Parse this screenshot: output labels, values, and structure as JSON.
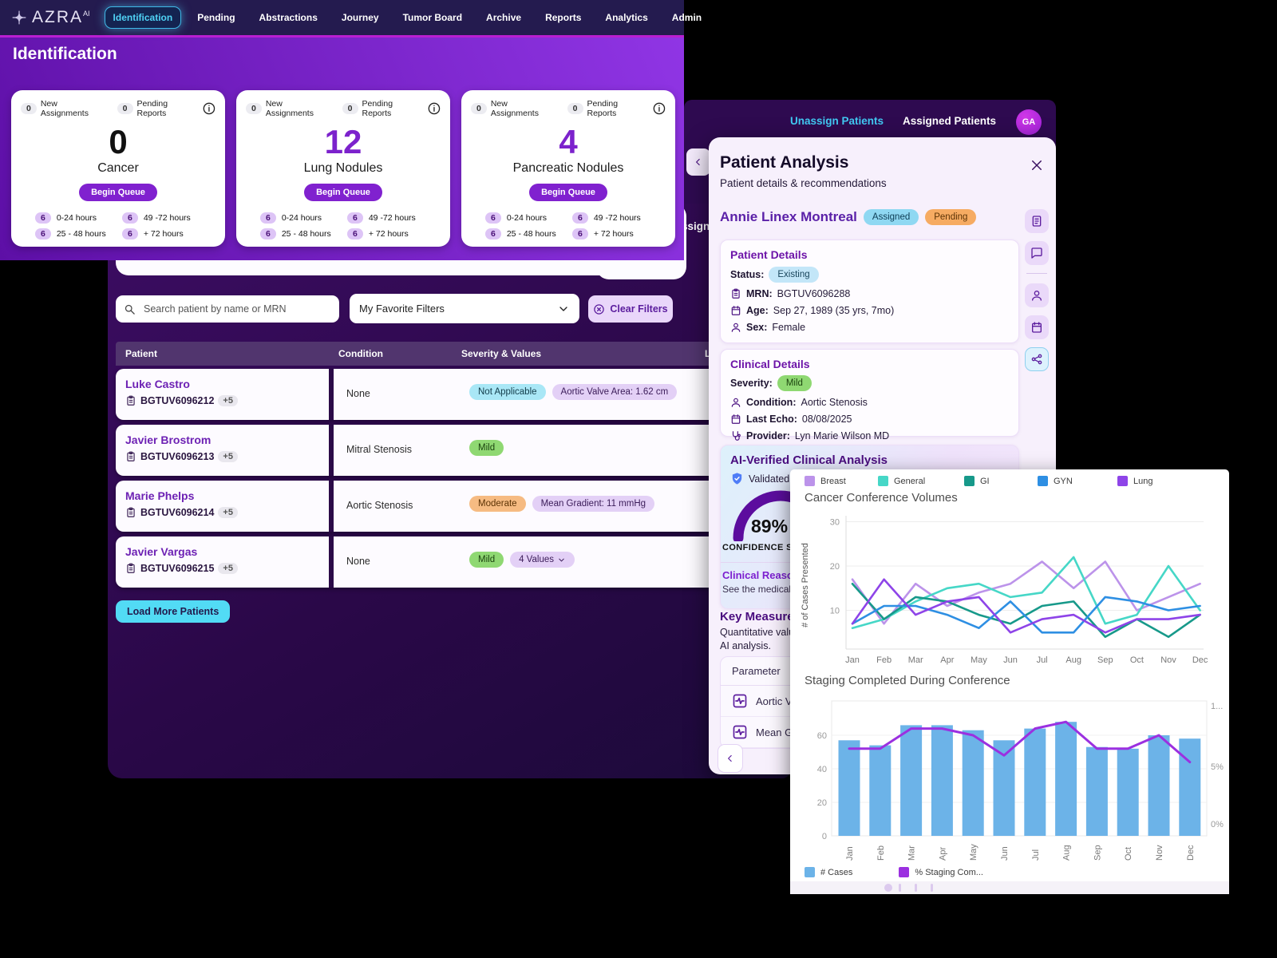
{
  "colors": {
    "accent_purple": "#8021cf",
    "accent_cyan": "#52dbf5",
    "tab_cyan": "#41c9f2",
    "magenta_line": "#b91fd1",
    "gauge_purple": "#5c0d9e"
  },
  "nav": {
    "brand": "AZRA",
    "brand_sup": "AI",
    "items": [
      {
        "label": "Identification",
        "active": true
      },
      {
        "label": "Pending"
      },
      {
        "label": "Abstractions"
      },
      {
        "label": "Journey"
      },
      {
        "label": "Tumor Board"
      },
      {
        "label": "Archive"
      },
      {
        "label": "Reports"
      },
      {
        "label": "Analytics"
      },
      {
        "label": "Admin"
      }
    ]
  },
  "identification": {
    "title": "Identification",
    "cards": [
      {
        "new_count": "0",
        "new_label": "New Assignments",
        "pending_count": "0",
        "pending_label": "Pending Reports",
        "count": "0",
        "number_color": "#111111",
        "name": "Cancer",
        "button": "Begin Queue",
        "times": [
          {
            "count": "6",
            "label": "0-24 hours"
          },
          {
            "count": "6",
            "label": "49 -72 hours"
          },
          {
            "count": "6",
            "label": "25 - 48 hours"
          },
          {
            "count": "6",
            "label": "+ 72 hours"
          }
        ]
      },
      {
        "new_count": "0",
        "new_label": "New Assignments",
        "pending_count": "0",
        "pending_label": "Pending Reports",
        "count": "12",
        "number_color": "#7c22cc",
        "name": "Lung Nodules",
        "button": "Begin Queue",
        "times": [
          {
            "count": "6",
            "label": "0-24 hours"
          },
          {
            "count": "6",
            "label": "49 -72 hours"
          },
          {
            "count": "6",
            "label": "25 - 48 hours"
          },
          {
            "count": "6",
            "label": "+ 72 hours"
          }
        ]
      },
      {
        "new_count": "0",
        "new_label": "New Assignments",
        "pending_count": "0",
        "pending_label": "Pending Reports",
        "count": "4",
        "number_color": "#7c22cc",
        "name": "Pancreatic Nodules",
        "button": "Begin Queue",
        "times": [
          {
            "count": "6",
            "label": "0-24 hours"
          },
          {
            "count": "6",
            "label": "49 -72 hours"
          },
          {
            "count": "6",
            "label": "25 - 48 hours"
          },
          {
            "count": "6",
            "label": "+ 72 hours"
          }
        ]
      }
    ]
  },
  "filters": {
    "search_placeholder": "Search patient by name or MRN",
    "favorite_filters": "My Favorite Filters",
    "clear_filters": "Clear Filters"
  },
  "patient_table": {
    "headers": [
      "Patient",
      "Condition",
      "Severity & Values",
      "La"
    ],
    "rows": [
      {
        "name": "Luke Castro",
        "mrn": "BGTUV6096212",
        "extra": "+5",
        "condition": "None",
        "badges": [
          {
            "label": "Not Applicable",
            "color": "cyan"
          },
          {
            "label": "Aortic Valve Area: 1.62 cm",
            "color": "lavender"
          }
        ]
      },
      {
        "name": "Javier Brostrom",
        "mrn": "BGTUV6096213",
        "extra": "+5",
        "condition": "Mitral Stenosis",
        "badges": [
          {
            "label": "Mild",
            "color": "green"
          }
        ]
      },
      {
        "name": "Marie Phelps",
        "mrn": "BGTUV6096214",
        "extra": "+5",
        "condition": "Aortic Stenosis",
        "badges": [
          {
            "label": "Moderate",
            "color": "orange"
          },
          {
            "label": "Mean Gradient: 11 mmHg",
            "color": "lavender"
          }
        ]
      },
      {
        "name": "Javier Vargas",
        "mrn": "BGTUV6096215",
        "extra": "+5",
        "condition": "None",
        "badges": [
          {
            "label": "Mild",
            "color": "green"
          },
          {
            "label": "4 Values",
            "color": "lavender",
            "chevron": true
          }
        ]
      }
    ],
    "load_more": "Load More Patients"
  },
  "tab_window": {
    "tabs": [
      {
        "label": "Unassign Patients",
        "active": true
      },
      {
        "label": "Assigned Patients"
      }
    ],
    "avatar": "GA",
    "hidden_fragment": "Assigned"
  },
  "patient_panel": {
    "title": "Patient Analysis",
    "subtitle": "Patient details & recommendations",
    "patient_name": "Annie Linex Montreal",
    "status_badges": [
      {
        "label": "Assigned",
        "color": "blue"
      },
      {
        "label": "Pending",
        "color": "orange2"
      }
    ],
    "patient_details": {
      "heading": "Patient Details",
      "status_label": "Status:",
      "status_badge": "Existing",
      "mrn_label": "MRN:",
      "mrn": "BGTUV6096288",
      "age_label": "Age:",
      "age": "Sep 27, 1989 (35 yrs, 7mo)",
      "sex_label": "Sex:",
      "sex": "Female"
    },
    "clinical_details": {
      "heading": "Clinical Details",
      "severity_label": "Severity:",
      "severity_badge": "Mild",
      "condition_label": "Condition:",
      "condition": "Aortic Stenosis",
      "last_echo_label": "Last Echo:",
      "last_echo": "08/08/2025",
      "provider_label": "Provider:",
      "provider": "Lyn Marie Wilson MD"
    },
    "ai_analysis": {
      "heading": "AI-Verified Clinical Analysis",
      "validated_text": "Validated ag",
      "confidence": "89%",
      "confidence_label": "CONFIDENCE SCORE",
      "reasoning_title": "Clinical Reasoning",
      "reasoning_text": "See the medical"
    },
    "key_measurements": {
      "heading": "Key Measurements",
      "description_line1": "Quantitative values",
      "description_line2": "AI analysis.",
      "param_header": "Parameter",
      "parameters": [
        "Aortic Valve",
        "Mean Gradient"
      ]
    },
    "icon_rail": [
      {
        "name": "report"
      },
      {
        "name": "comment"
      },
      {
        "name": "divider"
      },
      {
        "name": "person"
      },
      {
        "name": "calendar"
      },
      {
        "name": "network",
        "active": true
      }
    ]
  },
  "chart_data": [
    {
      "type": "line",
      "title": "Cancer Conference Volumes",
      "ylabel": "# of Cases Presented",
      "categories": [
        "Jan",
        "Feb",
        "Mar",
        "Apr",
        "May",
        "Jun",
        "Jul",
        "Aug",
        "Sep",
        "Oct",
        "Nov",
        "Dec"
      ],
      "ylim": [
        0,
        30
      ],
      "yticks": [
        10,
        20,
        30
      ],
      "legend_position": "top",
      "series": [
        {
          "name": "Breast",
          "color": "#bc93ea",
          "values": [
            17,
            7,
            16,
            11,
            14,
            16,
            21,
            15,
            21,
            10,
            13,
            16
          ]
        },
        {
          "name": "General",
          "color": "#46d7c7",
          "values": [
            6,
            8,
            12,
            15,
            16,
            13,
            14,
            22,
            7,
            9,
            20,
            10
          ]
        },
        {
          "name": "GI",
          "color": "#17998a",
          "values": [
            16,
            8,
            13,
            12,
            9,
            7,
            11,
            12,
            4,
            8,
            4,
            9
          ]
        },
        {
          "name": "GYN",
          "color": "#2e8fe3",
          "values": [
            7,
            11,
            11,
            9,
            6,
            12,
            5,
            5,
            13,
            12,
            10,
            11
          ]
        },
        {
          "name": "Lung",
          "color": "#8e44e8",
          "values": [
            7,
            17,
            9,
            12,
            13,
            5,
            8,
            9,
            5,
            8,
            8,
            9
          ]
        }
      ]
    },
    {
      "type": "bar",
      "title": "Staging Completed During Conference",
      "categories": [
        "Jan",
        "Feb",
        "Mar",
        "Apr",
        "May",
        "Jun",
        "Jul",
        "Aug",
        "Sep",
        "Oct",
        "Nov",
        "Dec"
      ],
      "ylim": [
        0,
        70
      ],
      "yticks": [
        0,
        20,
        40,
        60
      ],
      "right_axis_labels": [
        "1...",
        "5%",
        "0%"
      ],
      "legend_position": "bottom",
      "series": [
        {
          "name": "# Cases",
          "kind": "bar",
          "color": "#6cb3e8",
          "values": [
            57,
            54,
            66,
            66,
            63,
            57,
            64,
            68,
            53,
            52,
            60,
            58
          ]
        },
        {
          "name": "% Staging Com...",
          "kind": "line",
          "color": "#9b30e0",
          "values": [
            52,
            52,
            64,
            64,
            60,
            48,
            64,
            68,
            52,
            52,
            60,
            44
          ]
        }
      ]
    }
  ]
}
